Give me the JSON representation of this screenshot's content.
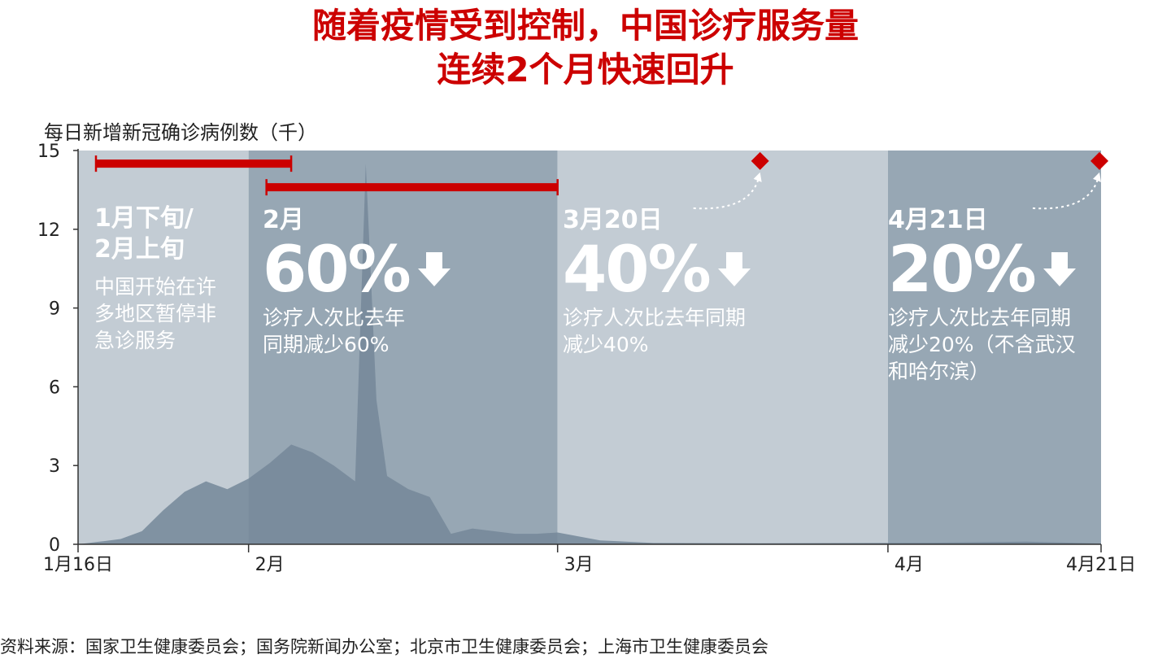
{
  "title": {
    "line1": "随着疫情受到控制，中国诊疗服务量",
    "line2": "连续2个月快速回升"
  },
  "colors": {
    "title": "#cc0000",
    "accent_red": "#cc0000",
    "band_light": "#c3ccd4",
    "band_dark": "#97a7b4",
    "area": "#748799"
  },
  "chart_data": {
    "type": "area",
    "ylabel": "每日新增新冠确诊病例数（千）",
    "ylim": [
      0,
      15
    ],
    "yticks": [
      "0",
      "3",
      "6",
      "9",
      "12",
      "15"
    ],
    "xticks": [
      "1月16日",
      "2月",
      "3月",
      "4月",
      "4月21日"
    ],
    "x_range": [
      "2020-01-16",
      "2020-04-21"
    ],
    "series": [
      {
        "x": [
          "2020-01-16",
          "2020-01-18",
          "2020-01-20",
          "2020-01-22",
          "2020-01-24",
          "2020-01-26",
          "2020-01-28",
          "2020-01-30",
          "2020-02-01",
          "2020-02-03",
          "2020-02-05",
          "2020-02-07",
          "2020-02-09",
          "2020-02-11",
          "2020-02-12",
          "2020-02-13",
          "2020-02-14",
          "2020-02-16",
          "2020-02-18",
          "2020-02-20",
          "2020-02-22",
          "2020-02-24",
          "2020-02-26",
          "2020-02-28",
          "2020-03-01",
          "2020-03-05",
          "2020-03-10",
          "2020-03-20",
          "2020-03-31",
          "2020-04-05",
          "2020-04-10",
          "2020-04-14",
          "2020-04-21"
        ],
        "values": [
          0,
          0.1,
          0.2,
          0.5,
          1.3,
          2.0,
          2.4,
          2.1,
          2.5,
          3.1,
          3.8,
          3.5,
          3.0,
          2.4,
          14.5,
          5.5,
          2.6,
          2.1,
          1.8,
          0.4,
          0.6,
          0.5,
          0.4,
          0.4,
          0.45,
          0.15,
          0.05,
          0.04,
          0.05,
          0.06,
          0.08,
          0.1,
          0.03
        ]
      }
    ],
    "periods": [
      {
        "start": "2020-01-16",
        "end": "2020-02-01",
        "shade": "light"
      },
      {
        "start": "2020-02-01",
        "end": "2020-03-01",
        "shade": "dark"
      },
      {
        "start": "2020-03-01",
        "end": "2020-04-01",
        "shade": "light"
      },
      {
        "start": "2020-04-01",
        "end": "2020-04-21",
        "shade": "dark"
      }
    ],
    "red_bars": [
      {
        "start": "2020-01-16",
        "end": "2020-02-05",
        "y": 14.5
      },
      {
        "start": "2020-02-01",
        "end": "2020-03-01",
        "y": 13.6
      }
    ],
    "markers": [
      {
        "x": "2020-03-20",
        "y": 14.6
      },
      {
        "x": "2020-04-21",
        "y": 14.6
      }
    ]
  },
  "annotations": [
    {
      "head": "1月下旬/\n2月上旬",
      "big": "",
      "desc": "中国开始在许\n多地区暂停非\n急诊服务"
    },
    {
      "head": "2月",
      "big": "60%",
      "desc": "诊疗人次比去年\n同期减少60%"
    },
    {
      "head": "3月20日",
      "big": "40%",
      "desc": "诊疗人次比去年同期\n减少40%"
    },
    {
      "head": "4月21日",
      "big": "20%",
      "desc": "诊疗人次比去年同期\n减少20%（不含武汉\n和哈尔滨）"
    }
  ],
  "source": "资料来源：国家卫生健康委员会；国务院新闻办公室；北京市卫生健康委员会；上海市卫生健康委员会"
}
